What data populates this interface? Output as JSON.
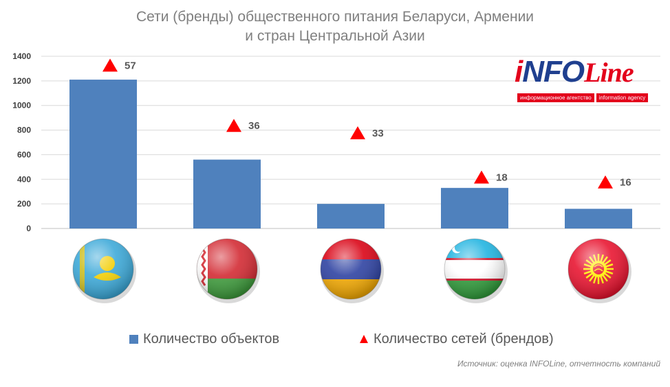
{
  "header": {
    "title_line1": "Сети (бренды) общественного питания Беларуси, Армении",
    "title_line2": "и стран Центральной Азии"
  },
  "logo": {
    "i": "i",
    "nfo": "NFO",
    "line": "Line",
    "tag_ru": "информационное агентство",
    "tag_en": "information agency"
  },
  "colors": {
    "bar": "#4f81bd",
    "marker": "#ff0000",
    "axis_text": "#404040",
    "grid": "#d9d9d9",
    "title": "#7f7f7f"
  },
  "chart_data": {
    "type": "bar",
    "categories": [
      {
        "flag": "kazakhstan-flag"
      },
      {
        "flag": "belarus-flag"
      },
      {
        "flag": "armenia-flag"
      },
      {
        "flag": "uzbekistan-flag"
      },
      {
        "flag": "kyrgyzstan-flag"
      }
    ],
    "series": [
      {
        "name": "Количество объектов",
        "kind": "bar",
        "values": [
          1210,
          560,
          200,
          330,
          160
        ]
      },
      {
        "name": "Количество сетей (брендов)",
        "kind": "marker",
        "values": [
          57,
          36,
          33,
          18,
          16
        ],
        "marker_positions": [
          1320,
          830,
          770,
          410,
          370
        ]
      }
    ],
    "y_ticks": [
      "0",
      "200",
      "400",
      "600",
      "800",
      "1000",
      "1200",
      "1400"
    ],
    "ylim": [
      0,
      1400
    ],
    "grid": true,
    "legend_position": "bottom"
  },
  "legend": {
    "bars_label": "Количество объектов",
    "markers_label": "Количество сетей (брендов)"
  },
  "source": "Источник: оценка INFOLine, отчетность компаний"
}
